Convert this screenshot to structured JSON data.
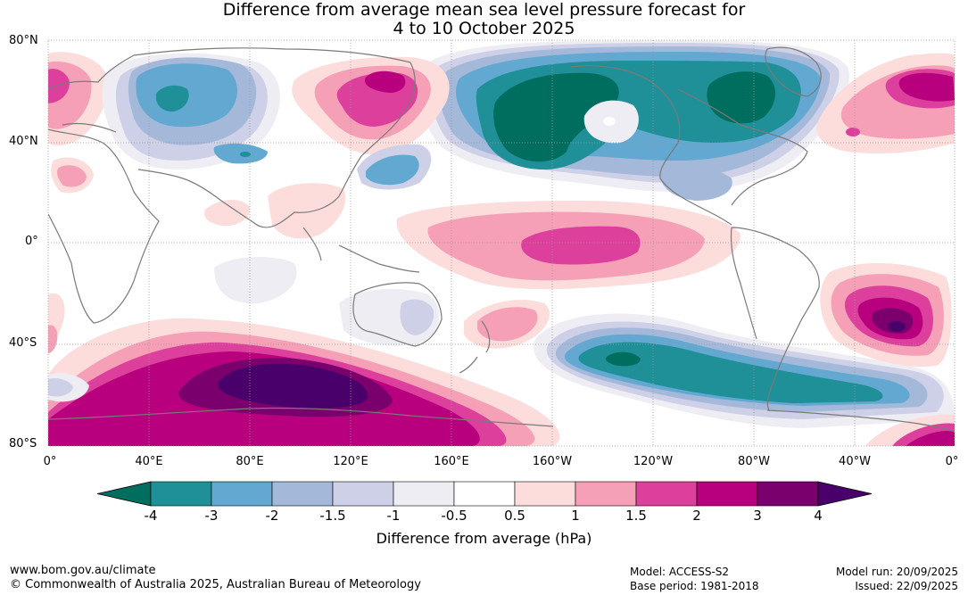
{
  "title_line1": "Difference from average mean sea level pressure forecast for",
  "title_line2": "4 to 10 October 2025",
  "lat_labels": [
    "80°N",
    "40°N",
    "0°",
    "40°S",
    "80°S"
  ],
  "lon_labels": [
    "0°",
    "40°E",
    "80°E",
    "120°E",
    "160°E",
    "160°W",
    "120°W",
    "80°W",
    "40°W",
    "0°"
  ],
  "colorbar": {
    "title": "Difference from average (hPa)",
    "tick_labels": [
      "-4",
      "-3",
      "-2",
      "-1.5",
      "-1",
      "-0.5",
      "0.5",
      "1",
      "1.5",
      "2",
      "3",
      "4"
    ],
    "colors": [
      "#006e5e",
      "#1f8f98",
      "#62a8d0",
      "#a4b9d9",
      "#cdd0e6",
      "#eeedf4",
      "#ffffff",
      "#fddcdc",
      "#f5a0b6",
      "#dd3f9d",
      "#b8007e",
      "#7a006e",
      "#4a006a"
    ]
  },
  "footer": {
    "website": "www.bom.gov.au/climate",
    "copyright": "© Commonwealth of Australia 2025, Australian Bureau of Meteorology",
    "model": "Model: ACCESS-S2",
    "base_period": "Base period: 1981-2018",
    "model_run": "Model run: 20/09/2025",
    "issued": "Issued: 22/09/2025"
  }
}
